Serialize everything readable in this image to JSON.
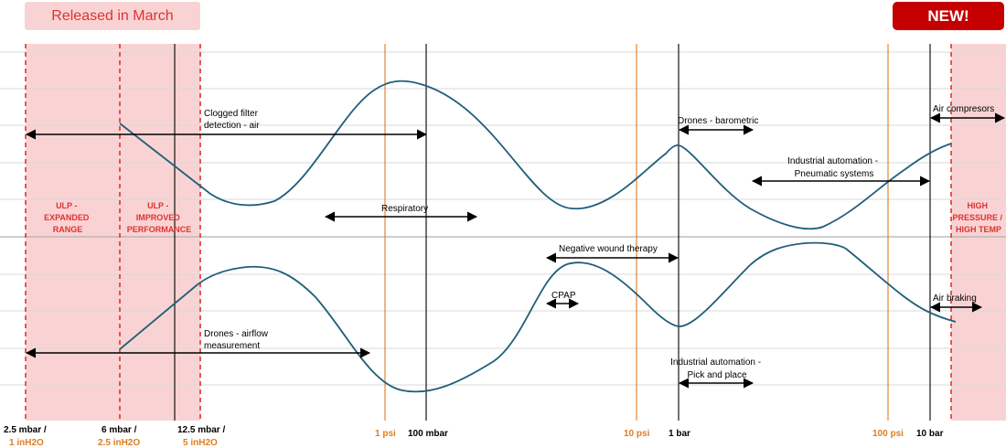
{
  "badges": {
    "released": "Released in March",
    "new": "NEW!"
  },
  "zones": {
    "ulp_expanded": [
      "ULP -",
      "EXPANDED",
      "RANGE"
    ],
    "ulp_improved": [
      "ULP -",
      "IMPROVED",
      "PERFORMANCE"
    ],
    "high_pressure": [
      "HIGH",
      "PRESSURE /",
      "HIGH TEMP"
    ]
  },
  "axis": {
    "pressure_labels": [
      {
        "top": "2.5 mbar /",
        "bottom": "1 inH2O"
      },
      {
        "top": "6 mbar /",
        "bottom": "2.5 inH2O"
      },
      {
        "top": "12.5 mbar /",
        "bottom": "5 inH2O"
      },
      {
        "top": "1 psi",
        "bottom": ""
      },
      {
        "top": "100 mbar",
        "bottom": ""
      },
      {
        "top": "10 psi",
        "bottom": ""
      },
      {
        "top": "1 bar",
        "bottom": ""
      },
      {
        "top": "100 psi",
        "bottom": ""
      },
      {
        "top": "10 bar",
        "bottom": ""
      }
    ]
  },
  "applications": {
    "clogged_filter": [
      "Clogged filter",
      "detection - air"
    ],
    "respiratory": "Respiratory",
    "drones_barometric": "Drones - barometric",
    "industrial_pneumatic": [
      "Industrial automation -",
      "Pneumatic systems"
    ],
    "air_compressors": "Air compresors",
    "negative_wound": "Negative wound therapy",
    "cpap": "CPAP",
    "air_braking": "Air braking",
    "drones_airflow": [
      "Drones - airflow",
      "measurement"
    ],
    "industrial_pick": [
      "Industrial automation -",
      "Pick and place"
    ]
  },
  "colors": {
    "zone_fill": "#f9d3d3",
    "zone_border": "#e03131",
    "curve": "#1f5f7a",
    "orange_line": "#e07b20",
    "new_badge": "#c40000"
  }
}
